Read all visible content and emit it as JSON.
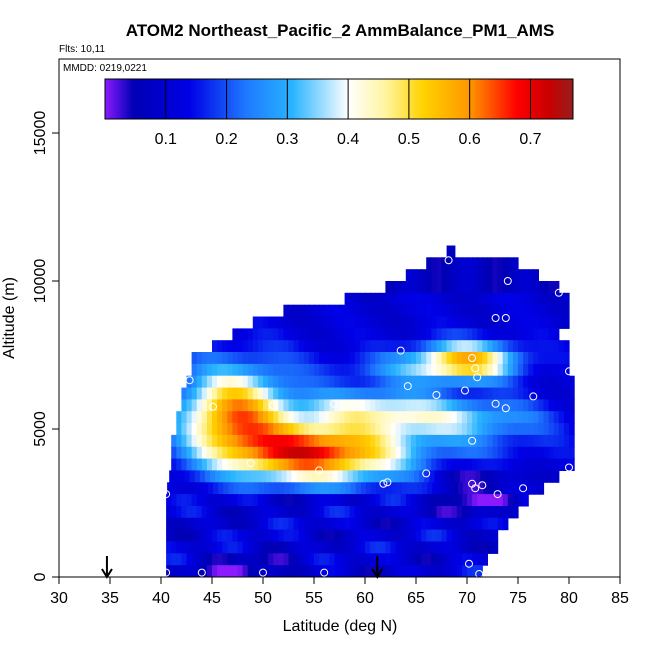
{
  "chart_data": {
    "type": "heatmap",
    "title": "ATOM2 Northeast_Pacific_2 AmmBalance_PM1_AMS",
    "flights_label": "Flts: 10,11",
    "mmdd_label": "MMDD: 0219,0221",
    "xlabel": "Latitude (deg N)",
    "ylabel": "Altitude (m)",
    "xlim": [
      30,
      85
    ],
    "ylim": [
      0,
      17500
    ],
    "xticks": [
      "30",
      "35",
      "40",
      "45",
      "50",
      "55",
      "60",
      "65",
      "70",
      "75",
      "80",
      "85"
    ],
    "yticks": [
      "0",
      "5000",
      "10000",
      "15000"
    ],
    "colorbar": {
      "ticks": [
        "0.1",
        "0.2",
        "0.3",
        "0.4",
        "0.5",
        "0.6",
        "0.7"
      ],
      "range": [
        0,
        0.77
      ],
      "colors": [
        "#8c1aff",
        "#0000b4",
        "#0000e6",
        "#1e78ff",
        "#28b4ff",
        "#ffffff",
        "#fff5a0",
        "#ffd200",
        "#ff9600",
        "#ff0000",
        "#c80000",
        "#961e1e"
      ]
    },
    "arrows_latitude": [
      34.7,
      61.2
    ],
    "grid": false,
    "legend": "colorbar-top"
  }
}
